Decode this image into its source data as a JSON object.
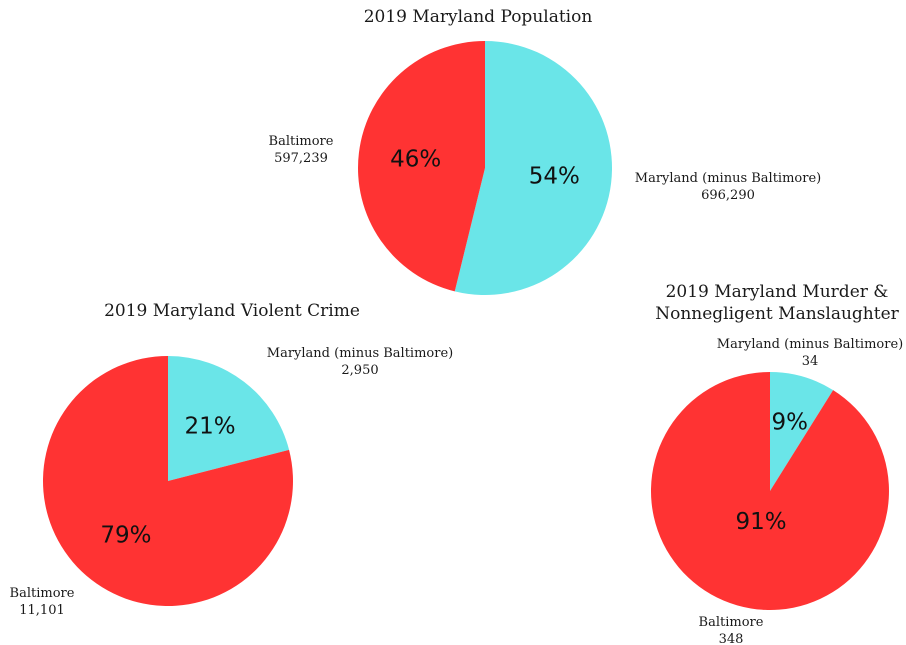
{
  "colors": {
    "baltimore": "#FF3333",
    "rest": "#6AE5E8"
  },
  "chart_data": [
    {
      "type": "pie",
      "title": "2019 Maryland Population",
      "slices": [
        {
          "label": "Maryland (minus Baltimore)",
          "value_text": "696,290",
          "value": 696290,
          "percent": 54,
          "percent_text": "54%",
          "color": "#6AE5E8"
        },
        {
          "label": "Baltimore",
          "value_text": "597,239",
          "value": 597239,
          "percent": 46,
          "percent_text": "46%",
          "color": "#FF3333"
        }
      ]
    },
    {
      "type": "pie",
      "title": "2019 Maryland Violent Crime",
      "slices": [
        {
          "label": "Maryland (minus Baltimore)",
          "value_text": "2,950",
          "value": 2950,
          "percent": 21,
          "percent_text": "21%",
          "color": "#6AE5E8"
        },
        {
          "label": "Baltimore",
          "value_text": "11,101",
          "value": 11101,
          "percent": 79,
          "percent_text": "79%",
          "color": "#FF3333"
        }
      ]
    },
    {
      "type": "pie",
      "title_lines": [
        "2019 Maryland Murder &",
        "Nonnegligent Manslaughter"
      ],
      "slices": [
        {
          "label": "Maryland (minus Baltimore)",
          "value_text": "34",
          "value": 34,
          "percent": 9,
          "percent_text": "9%",
          "color": "#6AE5E8"
        },
        {
          "label": "Baltimore",
          "value_text": "348",
          "value": 348,
          "percent": 91,
          "percent_text": "91%",
          "color": "#FF3333"
        }
      ]
    }
  ]
}
